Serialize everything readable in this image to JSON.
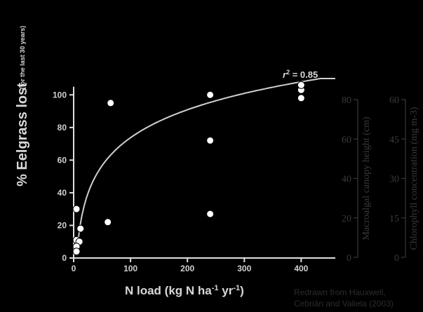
{
  "chart_data": {
    "type": "scatter",
    "title": "",
    "xlabel": "N load (kg N ha-1 yr-1)",
    "xlabel_parts": [
      "N load (kg N ha",
      "-1",
      " yr",
      "-1",
      ")"
    ],
    "ylabel": "% Eelgrass lost",
    "ylabel_note": "(for the last 30 years)",
    "xlim": [
      0,
      460
    ],
    "ylim": [
      0,
      110
    ],
    "xticks": [
      0,
      100,
      200,
      300,
      400
    ],
    "yticks": [
      0,
      20,
      40,
      60,
      80,
      100
    ],
    "points": [
      {
        "x": 5,
        "y": 30
      },
      {
        "x": 12,
        "y": 18
      },
      {
        "x": 5,
        "y": 11
      },
      {
        "x": 10,
        "y": 10
      },
      {
        "x": 5,
        "y": 7
      },
      {
        "x": 5,
        "y": 4
      },
      {
        "x": 60,
        "y": 22
      },
      {
        "x": 65,
        "y": 95
      },
      {
        "x": 240,
        "y": 72
      },
      {
        "x": 240,
        "y": 27
      },
      {
        "x": 240,
        "y": 100
      },
      {
        "x": 400,
        "y": 98
      },
      {
        "x": 400,
        "y": 103
      },
      {
        "x": 400,
        "y": 106
      }
    ],
    "fit_curve": {
      "type": "logarithmic",
      "label": "r2 = 0.85",
      "label_main": "r",
      "label_sup": "2",
      "label_rest": " = 0.85",
      "coef_a": 24.7,
      "coef_b": -40,
      "x_start": 7,
      "x_end": 460
    },
    "secondary_axes": [
      {
        "label": "Macroalgal canopy height (cm)",
        "ticks": [
          0,
          20,
          40,
          60,
          80
        ],
        "lim": [
          0,
          80
        ]
      },
      {
        "label": "Chlorophyll concentration (mg m-3)",
        "ticks": [
          0,
          15,
          30,
          45,
          60
        ],
        "lim": [
          0,
          60
        ]
      }
    ]
  },
  "credit": {
    "line1": "Redrawn from Hauxwell,",
    "line2": "Cebrián and Valiela (2003)"
  },
  "colors": {
    "background": "#000000",
    "foreground": "#e0e0e0",
    "overlay": "#3a3a3a"
  }
}
